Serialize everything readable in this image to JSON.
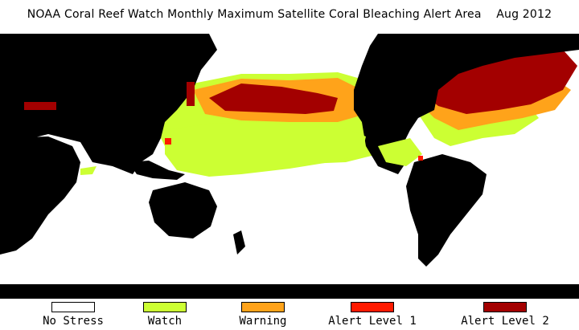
{
  "title": "NOAA Coral Reef Watch Monthly Maximum Satellite Coral Bleaching Alert Area    Aug 2012",
  "colors": {
    "ocean_no_stress": "#ffffff",
    "land": "#000000",
    "watch": "#ccff33",
    "warning": "#ffa31a",
    "alert_level_1": "#ff1a00",
    "alert_level_2": "#a30000"
  },
  "legend": [
    {
      "label": "No Stress",
      "color": "#ffffff"
    },
    {
      "label": "Watch",
      "color": "#ccff33"
    },
    {
      "label": "Warning",
      "color": "#ffa31a"
    },
    {
      "label": "Alert Level 1",
      "color": "#ff1a00"
    },
    {
      "label": "Alert Level 2",
      "color": "#a30000"
    }
  ]
}
